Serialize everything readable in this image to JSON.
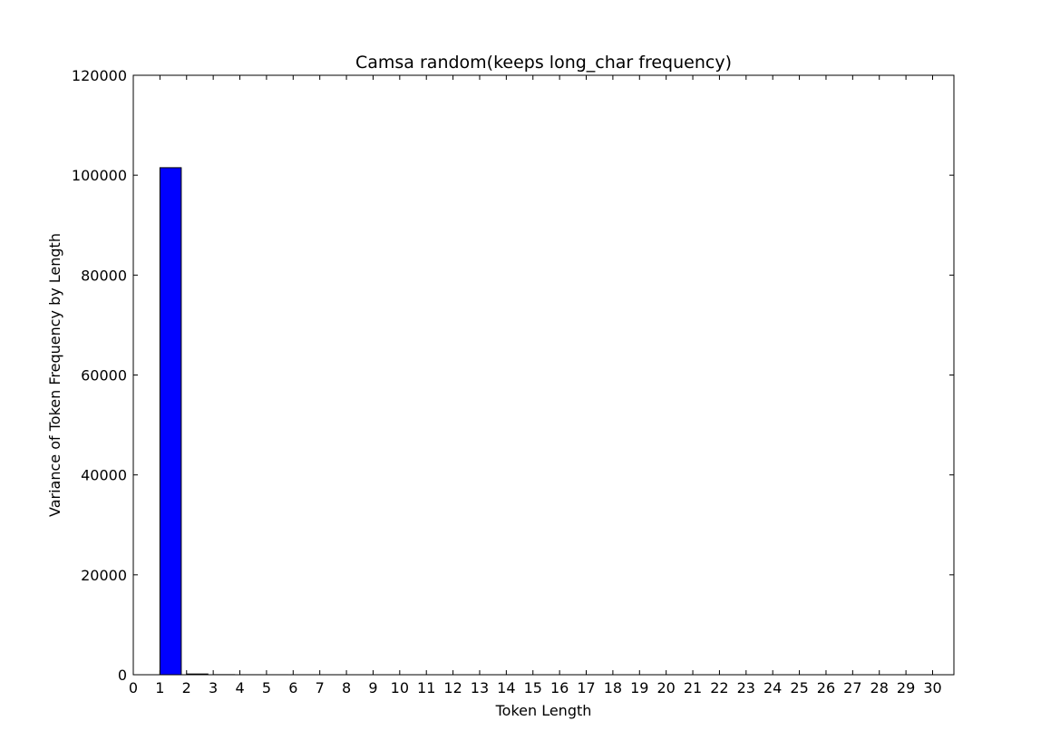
{
  "chart_data": {
    "type": "bar",
    "title": "Camsa random(keeps long_char frequency)",
    "xlabel": "Token Length",
    "ylabel": "Variance of Token Frequency by Length",
    "xlim": [
      0,
      30.8
    ],
    "ylim": [
      0,
      120000
    ],
    "xticks": [
      "0",
      "1",
      "2",
      "3",
      "4",
      "5",
      "6",
      "7",
      "8",
      "9",
      "10",
      "11",
      "12",
      "13",
      "14",
      "15",
      "16",
      "17",
      "18",
      "19",
      "20",
      "21",
      "22",
      "23",
      "24",
      "25",
      "26",
      "27",
      "28",
      "29",
      "30"
    ],
    "yticks": [
      "0",
      "20000",
      "40000",
      "60000",
      "80000",
      "100000",
      "120000"
    ],
    "bar_width": 0.8,
    "x": [
      1,
      2,
      3,
      4,
      5,
      6,
      7,
      8,
      9,
      10,
      11,
      12,
      13,
      14,
      15,
      16,
      17,
      18,
      19,
      20,
      21,
      22,
      23,
      24,
      25,
      26,
      27,
      28,
      29,
      30
    ],
    "values": [
      101500,
      150,
      20,
      5,
      2,
      1,
      0.5,
      0.3,
      0.2,
      0.1,
      0.1,
      0.1,
      0.05,
      0.05,
      0.05,
      0.05,
      0.05,
      0.05,
      0.05,
      0.05,
      0.05,
      0.05,
      0.05,
      0.05,
      0.05,
      0.05,
      0.05,
      0.05,
      0.05,
      0.05
    ],
    "bar_color": "#0000ff",
    "grid": false,
    "legend": "none"
  }
}
